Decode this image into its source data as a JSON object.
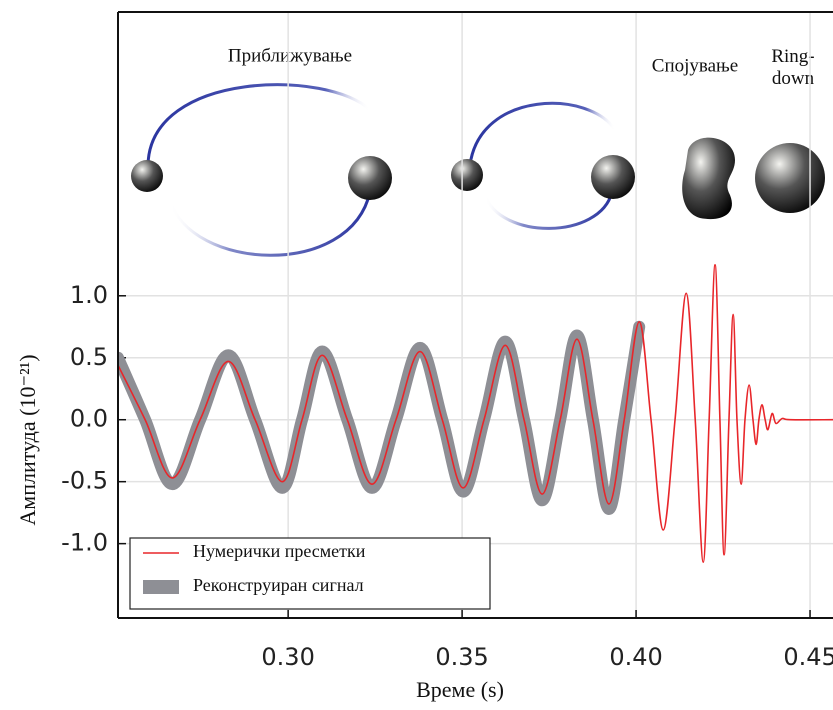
{
  "chart_data": {
    "type": "line",
    "xlabel": "Време (s)",
    "ylabel": "Амплитуда (10⁻²¹)",
    "annotations": [
      "Приближување",
      "Спојување",
      "Ring-\ndown"
    ],
    "x": [
      0.2511,
      0.2589,
      0.2667,
      0.2747,
      0.2828,
      0.2905,
      0.2983,
      0.304,
      0.3098,
      0.317,
      0.3241,
      0.331,
      0.3379,
      0.3443,
      0.3503,
      0.3563,
      0.3624,
      0.3678,
      0.373,
      0.3782,
      0.383,
      0.3876,
      0.3922,
      0.3966,
      0.4009,
      0.4043,
      0.4078,
      0.4112,
      0.4144,
      0.417,
      0.4193,
      0.421,
      0.4227,
      0.4241,
      0.4253,
      0.4267,
      0.4279,
      0.429,
      0.4302,
      0.4313,
      0.4325,
      0.4336,
      0.4345,
      0.4353,
      0.4362,
      0.4371,
      0.4379,
      0.4391,
      0.4402,
      0.442,
      0.4443,
      0.4566
    ],
    "series": [
      {
        "name": "Реконструиран сигнал",
        "color": "#8e8f95",
        "values": [
          0.5,
          0,
          -0.52,
          0,
          0.52,
          0,
          -0.55,
          0,
          0.55,
          0,
          -0.55,
          0,
          0.58,
          0,
          -0.58,
          0,
          0.63,
          0,
          -0.65,
          0,
          0.68,
          0,
          -0.72,
          0,
          0.75,
          null,
          null,
          null,
          null,
          null,
          null,
          null,
          null,
          null,
          null,
          null,
          null,
          null,
          null,
          null,
          null,
          null,
          null,
          null,
          null,
          null,
          null,
          null,
          null,
          null,
          null,
          null
        ]
      },
      {
        "name": "Нумерички пресметки",
        "color": "#e8262a",
        "values": [
          0.44,
          0,
          -0.47,
          0,
          0.47,
          0,
          -0.5,
          0,
          0.52,
          0,
          -0.52,
          0,
          0.55,
          0,
          -0.55,
          0,
          0.6,
          0,
          -0.6,
          0,
          0.65,
          0,
          -0.68,
          0,
          0.79,
          0,
          -0.89,
          0,
          1.02,
          0,
          -1.15,
          0,
          1.25,
          0,
          -1.09,
          0,
          0.85,
          0,
          -0.52,
          0,
          0.28,
          0,
          -0.2,
          0,
          0.12,
          0,
          -0.08,
          0.05,
          -0.03,
          0.01,
          0,
          0
        ]
      }
    ],
    "xlim": [
      0.2511,
      0.4566
    ],
    "ylim": [
      -1.6,
      3.29
    ],
    "xticks": [
      {
        "value": 0.3,
        "label": "0.30"
      },
      {
        "value": 0.35,
        "label": "0.35"
      },
      {
        "value": 0.4,
        "label": "0.40"
      },
      {
        "value": 0.45,
        "label": "0.45"
      }
    ],
    "yticks": [
      {
        "value": 1.0,
        "label": "1.0"
      },
      {
        "value": 0.5,
        "label": "0.5"
      },
      {
        "value": 0.0,
        "label": "0.0"
      },
      {
        "value": -0.5,
        "label": "-0.5"
      },
      {
        "value": -1.0,
        "label": "-1.0"
      }
    ],
    "grid": true
  }
}
